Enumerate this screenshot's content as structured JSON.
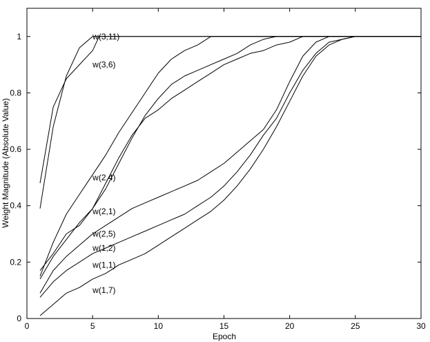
{
  "chart_data": {
    "type": "line",
    "title": "",
    "xlabel": "Epoch",
    "ylabel": "Weight Magnitude (Absolute Value)",
    "xlim": [
      0,
      30
    ],
    "ylim": [
      0,
      1.1
    ],
    "xticks": [
      0,
      5,
      10,
      15,
      20,
      25,
      30
    ],
    "yticks": [
      0,
      0.2,
      0.4,
      0.6,
      0.8,
      1
    ],
    "grid": false,
    "line_color": "#000000",
    "series": [
      {
        "name": "w(3,11)",
        "label_at": [
          5,
          1.0
        ],
        "x": [
          1,
          2,
          3,
          4,
          5,
          6,
          10,
          20,
          30
        ],
        "y": [
          0.39,
          0.68,
          0.86,
          0.96,
          1.0,
          1.0,
          1.0,
          1.0,
          1.0
        ]
      },
      {
        "name": "w(3,6)",
        "label_at": [
          5,
          0.9
        ],
        "x": [
          1,
          2,
          3,
          4,
          5,
          5.5,
          10,
          20,
          30
        ],
        "y": [
          0.48,
          0.75,
          0.85,
          0.9,
          0.95,
          1.0,
          1.0,
          1.0,
          1.0
        ]
      },
      {
        "name": "w(2,4)",
        "label_at": [
          5,
          0.5
        ],
        "x": [
          1,
          2,
          3,
          4,
          5,
          6,
          7,
          8,
          9,
          10,
          11,
          12,
          13,
          14,
          15,
          20,
          30
        ],
        "y": [
          0.15,
          0.27,
          0.37,
          0.44,
          0.51,
          0.58,
          0.66,
          0.73,
          0.8,
          0.87,
          0.92,
          0.95,
          0.97,
          1.0,
          1.0,
          1.0,
          1.0
        ]
      },
      {
        "name": "w(2,1)",
        "label_at": [
          5,
          0.38
        ],
        "x": [
          1,
          2,
          3,
          4,
          5,
          6,
          7,
          8,
          9,
          10,
          11,
          12,
          13,
          14,
          15,
          16,
          17,
          18,
          19,
          20,
          30
        ],
        "y": [
          0.17,
          0.23,
          0.3,
          0.33,
          0.39,
          0.46,
          0.55,
          0.64,
          0.72,
          0.78,
          0.83,
          0.86,
          0.88,
          0.9,
          0.92,
          0.94,
          0.97,
          0.99,
          1.0,
          1.0,
          1.0
        ]
      },
      {
        "name": "w(2,5)",
        "label_at": [
          5,
          0.3
        ],
        "x": [
          1,
          2,
          3,
          4,
          5,
          6,
          7,
          8,
          9,
          10,
          11,
          12,
          13,
          14,
          15,
          16,
          17,
          18,
          19,
          20,
          21,
          30
        ],
        "y": [
          0.14,
          0.22,
          0.28,
          0.34,
          0.39,
          0.48,
          0.57,
          0.65,
          0.71,
          0.74,
          0.78,
          0.81,
          0.84,
          0.87,
          0.9,
          0.92,
          0.94,
          0.95,
          0.97,
          0.98,
          1.0,
          1.0
        ]
      },
      {
        "name": "w(1,2)",
        "label_at": [
          5,
          0.25
        ],
        "x": [
          1,
          2,
          3,
          4,
          5,
          6,
          7,
          8,
          9,
          10,
          11,
          12,
          13,
          14,
          15,
          16,
          17,
          18,
          19,
          20,
          21,
          22,
          23,
          25,
          30
        ],
        "y": [
          0.09,
          0.17,
          0.22,
          0.26,
          0.3,
          0.33,
          0.36,
          0.39,
          0.41,
          0.43,
          0.45,
          0.47,
          0.49,
          0.52,
          0.55,
          0.59,
          0.63,
          0.67,
          0.74,
          0.84,
          0.93,
          0.98,
          1.0,
          1.0,
          1.0
        ]
      },
      {
        "name": "w(1,1)",
        "label_at": [
          5,
          0.19
        ],
        "x": [
          1,
          2,
          3,
          4,
          5,
          6,
          7,
          8,
          9,
          10,
          11,
          12,
          13,
          14,
          15,
          16,
          17,
          18,
          19,
          20,
          21,
          22,
          23,
          24,
          25,
          26,
          30
        ],
        "y": [
          0.075,
          0.13,
          0.17,
          0.2,
          0.23,
          0.25,
          0.27,
          0.29,
          0.31,
          0.33,
          0.35,
          0.37,
          0.4,
          0.43,
          0.47,
          0.52,
          0.58,
          0.65,
          0.71,
          0.8,
          0.88,
          0.94,
          0.98,
          0.99,
          1.0,
          1.0,
          1.0
        ]
      },
      {
        "name": "w(1,7)",
        "label_at": [
          5,
          0.1
        ],
        "x": [
          1,
          2,
          3,
          4,
          5,
          6,
          7,
          8,
          9,
          10,
          11,
          12,
          13,
          14,
          15,
          16,
          17,
          18,
          19,
          20,
          21,
          22,
          23,
          24,
          25,
          26,
          27,
          30
        ],
        "y": [
          0.01,
          0.05,
          0.09,
          0.11,
          0.14,
          0.16,
          0.19,
          0.21,
          0.23,
          0.26,
          0.29,
          0.32,
          0.35,
          0.38,
          0.42,
          0.47,
          0.53,
          0.6,
          0.68,
          0.77,
          0.86,
          0.93,
          0.97,
          0.99,
          1.0,
          1.0,
          1.0,
          1.0
        ]
      }
    ]
  }
}
